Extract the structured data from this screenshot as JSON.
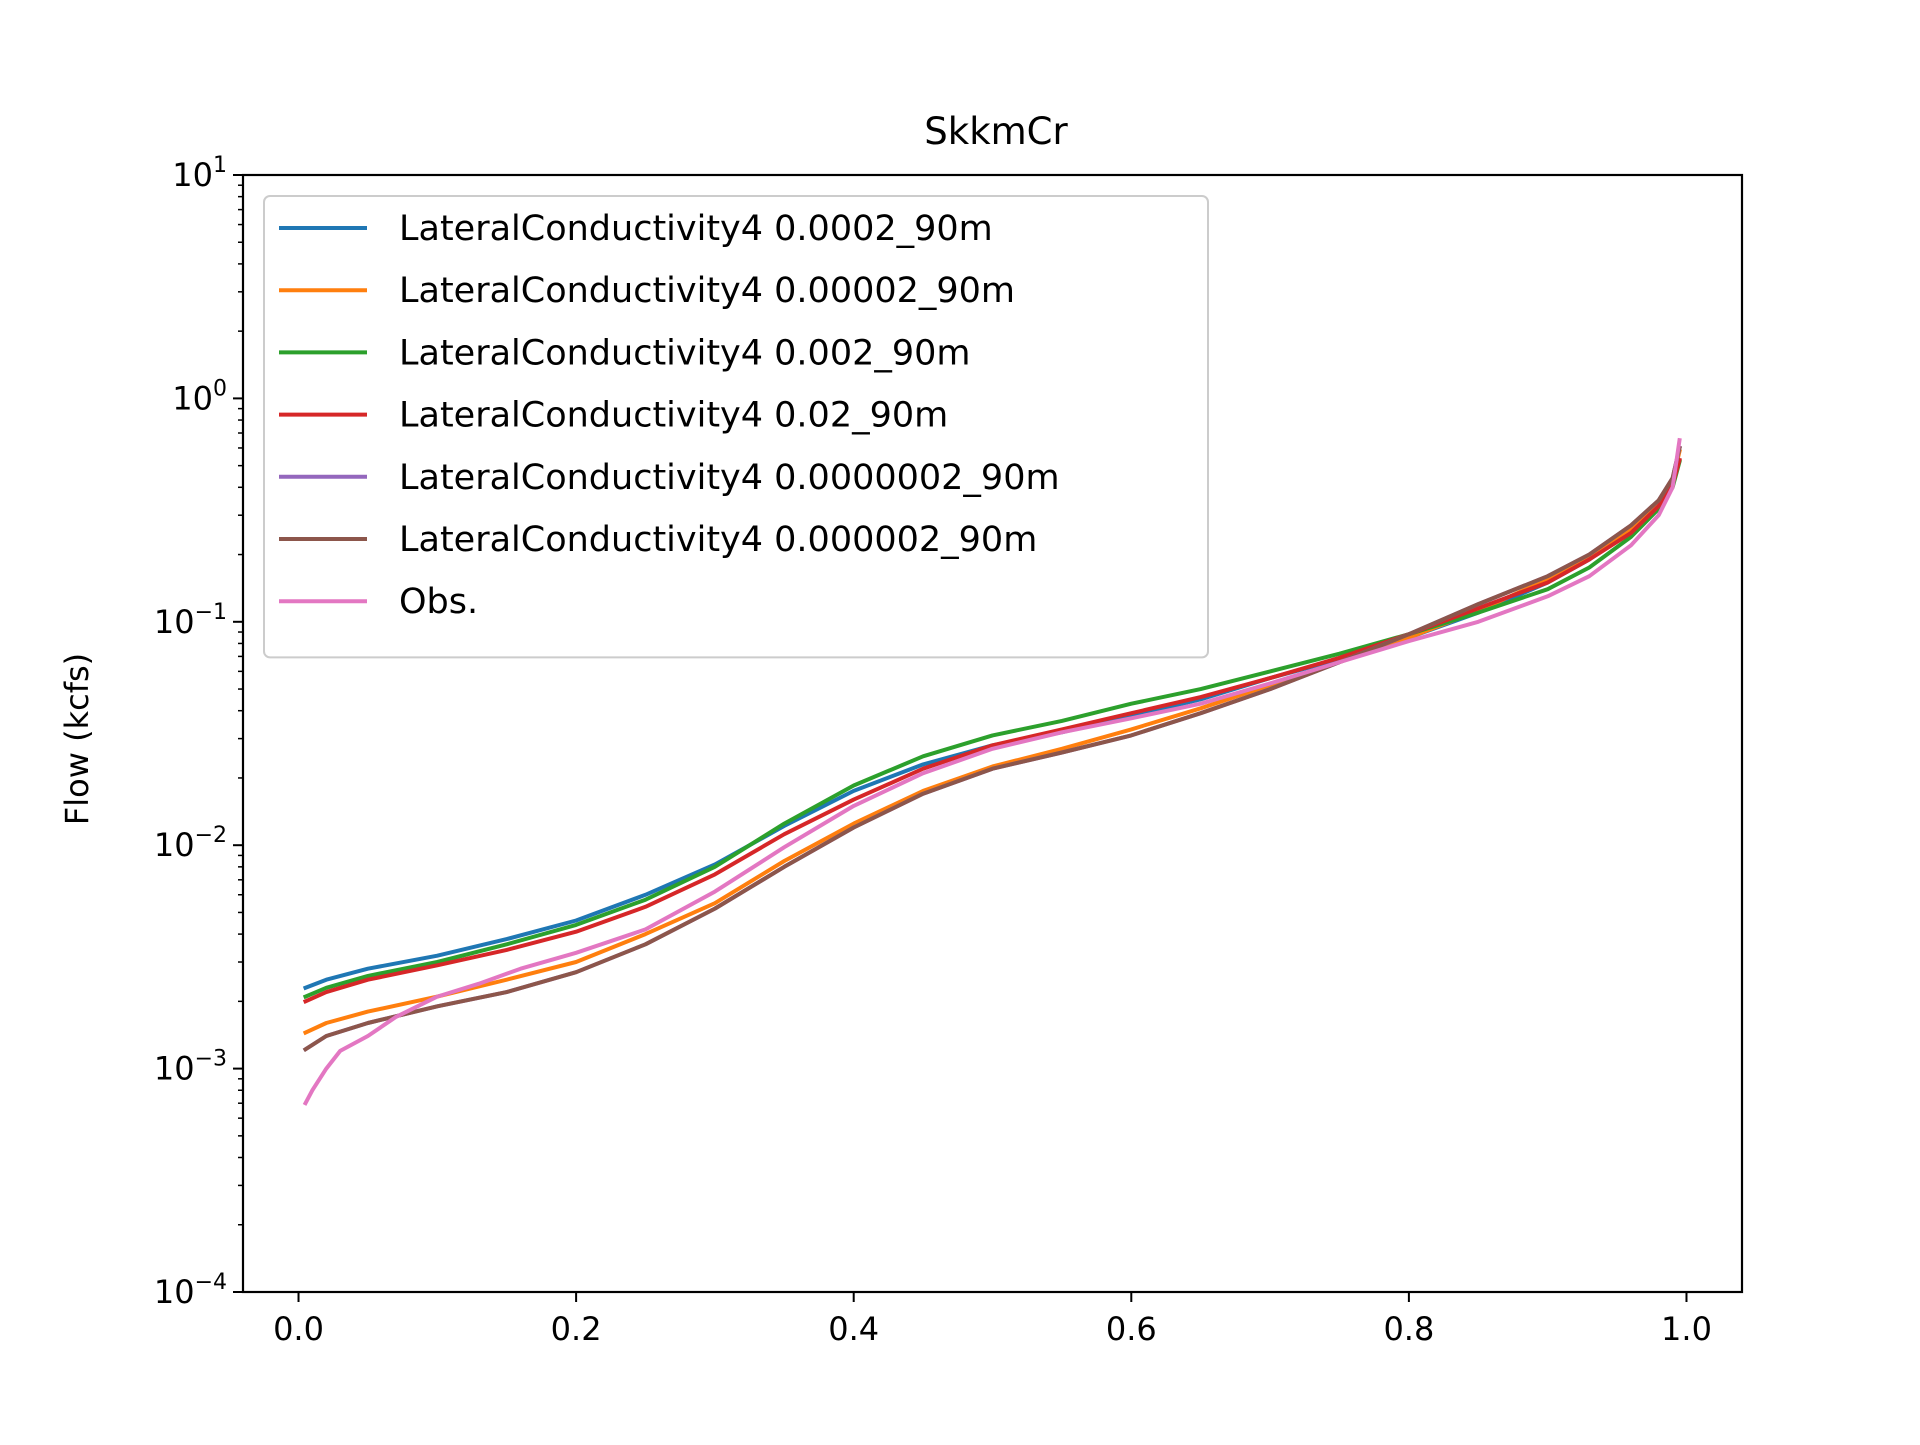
{
  "chart_data": {
    "type": "line",
    "title": "SkkmCr",
    "xlabel": "",
    "ylabel": "Flow (kcfs)",
    "xlim": [
      -0.04,
      1.04
    ],
    "ylim": [
      0.0001,
      10
    ],
    "yscale": "log",
    "x_ticks": [
      0.0,
      0.2,
      0.4,
      0.6,
      0.8,
      1.0
    ],
    "x_tick_labels": [
      "0.0",
      "0.2",
      "0.4",
      "0.6",
      "0.8",
      "1.0"
    ],
    "y_ticks": [
      {
        "value": 0.0001,
        "base": "10",
        "exp": "−4"
      },
      {
        "value": 0.001,
        "base": "10",
        "exp": "−3"
      },
      {
        "value": 0.01,
        "base": "10",
        "exp": "−2"
      },
      {
        "value": 0.1,
        "base": "10",
        "exp": "−1"
      },
      {
        "value": 1,
        "base": "10",
        "exp": "0"
      },
      {
        "value": 10,
        "base": "10",
        "exp": "1"
      }
    ],
    "grid": false,
    "legend_position": "upper-left",
    "series": [
      {
        "name": "LateralConductivity4 0.0002_90m",
        "color": "#1f77b4",
        "points": [
          [
            0.005,
            0.0023
          ],
          [
            0.02,
            0.0025
          ],
          [
            0.05,
            0.0028
          ],
          [
            0.1,
            0.0032
          ],
          [
            0.15,
            0.0038
          ],
          [
            0.2,
            0.0046
          ],
          [
            0.25,
            0.006
          ],
          [
            0.3,
            0.0082
          ],
          [
            0.35,
            0.0122
          ],
          [
            0.4,
            0.0175
          ],
          [
            0.45,
            0.023
          ],
          [
            0.5,
            0.028
          ],
          [
            0.55,
            0.032
          ],
          [
            0.6,
            0.038
          ],
          [
            0.65,
            0.045
          ],
          [
            0.7,
            0.056
          ],
          [
            0.75,
            0.068
          ],
          [
            0.8,
            0.085
          ],
          [
            0.85,
            0.11
          ],
          [
            0.9,
            0.15
          ],
          [
            0.93,
            0.19
          ],
          [
            0.96,
            0.26
          ],
          [
            0.98,
            0.34
          ],
          [
            0.99,
            0.43
          ],
          [
            0.995,
            0.6
          ]
        ]
      },
      {
        "name": "LateralConductivity4 0.00002_90m",
        "color": "#ff7f0e",
        "points": [
          [
            0.005,
            0.00145
          ],
          [
            0.02,
            0.0016
          ],
          [
            0.05,
            0.0018
          ],
          [
            0.1,
            0.0021
          ],
          [
            0.15,
            0.0025
          ],
          [
            0.2,
            0.003
          ],
          [
            0.25,
            0.004
          ],
          [
            0.3,
            0.0055
          ],
          [
            0.35,
            0.0085
          ],
          [
            0.4,
            0.0125
          ],
          [
            0.45,
            0.0175
          ],
          [
            0.5,
            0.0225
          ],
          [
            0.55,
            0.027
          ],
          [
            0.6,
            0.033
          ],
          [
            0.65,
            0.041
          ],
          [
            0.7,
            0.052
          ],
          [
            0.75,
            0.066
          ],
          [
            0.8,
            0.085
          ],
          [
            0.85,
            0.112
          ],
          [
            0.9,
            0.155
          ],
          [
            0.93,
            0.195
          ],
          [
            0.96,
            0.26
          ],
          [
            0.98,
            0.34
          ],
          [
            0.99,
            0.43
          ],
          [
            0.995,
            0.58
          ]
        ]
      },
      {
        "name": "LateralConductivity4 0.002_90m",
        "color": "#2ca02c",
        "points": [
          [
            0.005,
            0.0021
          ],
          [
            0.02,
            0.0023
          ],
          [
            0.05,
            0.0026
          ],
          [
            0.1,
            0.003
          ],
          [
            0.15,
            0.0036
          ],
          [
            0.2,
            0.0044
          ],
          [
            0.25,
            0.0057
          ],
          [
            0.3,
            0.008
          ],
          [
            0.35,
            0.0125
          ],
          [
            0.4,
            0.0185
          ],
          [
            0.45,
            0.025
          ],
          [
            0.5,
            0.031
          ],
          [
            0.55,
            0.036
          ],
          [
            0.6,
            0.043
          ],
          [
            0.65,
            0.05
          ],
          [
            0.7,
            0.06
          ],
          [
            0.75,
            0.072
          ],
          [
            0.8,
            0.088
          ],
          [
            0.85,
            0.11
          ],
          [
            0.9,
            0.14
          ],
          [
            0.93,
            0.175
          ],
          [
            0.96,
            0.24
          ],
          [
            0.98,
            0.32
          ],
          [
            0.99,
            0.4
          ],
          [
            0.995,
            0.52
          ]
        ]
      },
      {
        "name": "LateralConductivity4 0.02_90m",
        "color": "#d62728",
        "points": [
          [
            0.005,
            0.002
          ],
          [
            0.02,
            0.0022
          ],
          [
            0.05,
            0.0025
          ],
          [
            0.1,
            0.0029
          ],
          [
            0.15,
            0.0034
          ],
          [
            0.2,
            0.0041
          ],
          [
            0.25,
            0.0053
          ],
          [
            0.3,
            0.0074
          ],
          [
            0.35,
            0.0112
          ],
          [
            0.4,
            0.016
          ],
          [
            0.45,
            0.022
          ],
          [
            0.5,
            0.028
          ],
          [
            0.55,
            0.033
          ],
          [
            0.6,
            0.039
          ],
          [
            0.65,
            0.046
          ],
          [
            0.7,
            0.056
          ],
          [
            0.75,
            0.069
          ],
          [
            0.8,
            0.088
          ],
          [
            0.85,
            0.115
          ],
          [
            0.9,
            0.15
          ],
          [
            0.93,
            0.19
          ],
          [
            0.96,
            0.25
          ],
          [
            0.98,
            0.33
          ],
          [
            0.99,
            0.41
          ],
          [
            0.995,
            0.53
          ]
        ]
      },
      {
        "name": "LateralConductivity4 0.0000002_90m",
        "color": "#9467bd",
        "points": [
          [
            0.005,
            0.00122
          ],
          [
            0.02,
            0.0014
          ],
          [
            0.05,
            0.0016
          ],
          [
            0.1,
            0.0019
          ],
          [
            0.15,
            0.0022
          ],
          [
            0.2,
            0.0027
          ],
          [
            0.25,
            0.0036
          ],
          [
            0.3,
            0.0052
          ],
          [
            0.35,
            0.008
          ],
          [
            0.4,
            0.012
          ],
          [
            0.45,
            0.017
          ],
          [
            0.5,
            0.022
          ],
          [
            0.55,
            0.026
          ],
          [
            0.6,
            0.031
          ],
          [
            0.65,
            0.039
          ],
          [
            0.7,
            0.05
          ],
          [
            0.75,
            0.066
          ],
          [
            0.8,
            0.088
          ],
          [
            0.85,
            0.12
          ],
          [
            0.9,
            0.16
          ],
          [
            0.93,
            0.2
          ],
          [
            0.96,
            0.27
          ],
          [
            0.98,
            0.35
          ],
          [
            0.99,
            0.44
          ],
          [
            0.995,
            0.6
          ]
        ]
      },
      {
        "name": "LateralConductivity4 0.000002_90m",
        "color": "#8c564b",
        "points": [
          [
            0.005,
            0.00122
          ],
          [
            0.02,
            0.0014
          ],
          [
            0.05,
            0.0016
          ],
          [
            0.1,
            0.0019
          ],
          [
            0.15,
            0.0022
          ],
          [
            0.2,
            0.0027
          ],
          [
            0.25,
            0.0036
          ],
          [
            0.3,
            0.0052
          ],
          [
            0.35,
            0.008
          ],
          [
            0.4,
            0.012
          ],
          [
            0.45,
            0.017
          ],
          [
            0.5,
            0.022
          ],
          [
            0.55,
            0.026
          ],
          [
            0.6,
            0.031
          ],
          [
            0.65,
            0.039
          ],
          [
            0.7,
            0.05
          ],
          [
            0.75,
            0.066
          ],
          [
            0.8,
            0.088
          ],
          [
            0.85,
            0.12
          ],
          [
            0.9,
            0.16
          ],
          [
            0.93,
            0.2
          ],
          [
            0.96,
            0.27
          ],
          [
            0.98,
            0.35
          ],
          [
            0.99,
            0.44
          ],
          [
            0.995,
            0.6
          ]
        ]
      },
      {
        "name": "Obs.",
        "color": "#e377c2",
        "points": [
          [
            0.005,
            0.0007
          ],
          [
            0.01,
            0.0008
          ],
          [
            0.02,
            0.001
          ],
          [
            0.03,
            0.0012
          ],
          [
            0.05,
            0.0014
          ],
          [
            0.07,
            0.0017
          ],
          [
            0.1,
            0.0021
          ],
          [
            0.13,
            0.0024
          ],
          [
            0.16,
            0.0028
          ],
          [
            0.2,
            0.0033
          ],
          [
            0.25,
            0.0042
          ],
          [
            0.3,
            0.0062
          ],
          [
            0.35,
            0.0098
          ],
          [
            0.4,
            0.015
          ],
          [
            0.45,
            0.021
          ],
          [
            0.5,
            0.027
          ],
          [
            0.55,
            0.032
          ],
          [
            0.6,
            0.037
          ],
          [
            0.65,
            0.043
          ],
          [
            0.7,
            0.053
          ],
          [
            0.75,
            0.066
          ],
          [
            0.8,
            0.082
          ],
          [
            0.85,
            0.1
          ],
          [
            0.9,
            0.13
          ],
          [
            0.93,
            0.16
          ],
          [
            0.96,
            0.22
          ],
          [
            0.98,
            0.3
          ],
          [
            0.99,
            0.4
          ],
          [
            0.995,
            0.65
          ]
        ]
      }
    ]
  }
}
